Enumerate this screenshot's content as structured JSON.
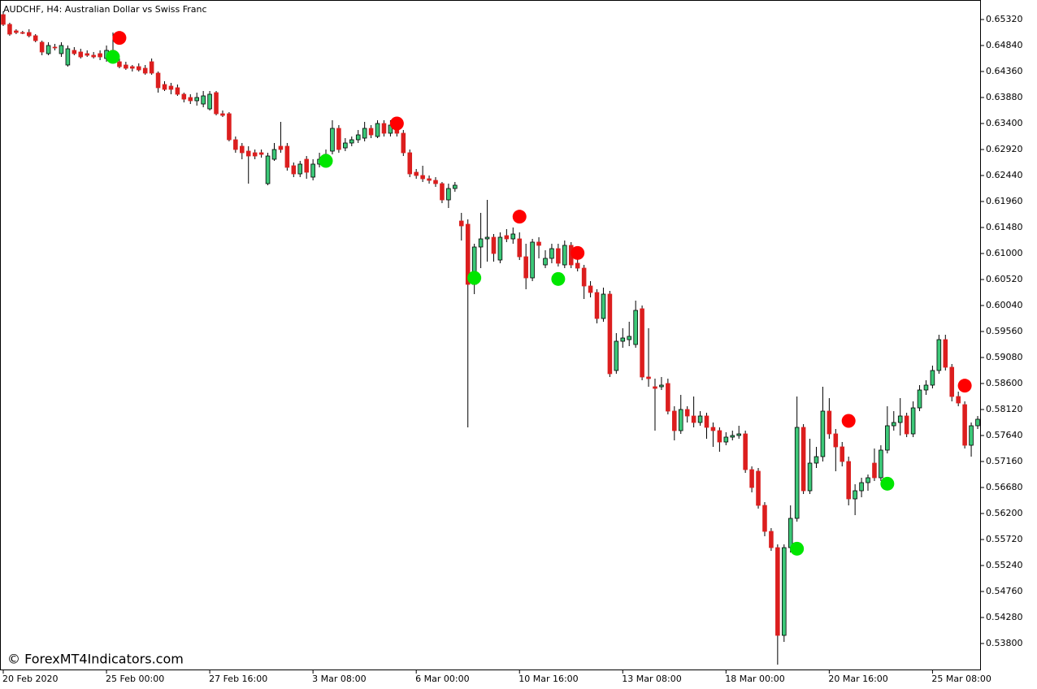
{
  "chart_data": {
    "type": "candlestick",
    "title": "AUDCHF, H4:  Australian Dollar vs Swiss Franc",
    "watermark": "© ForexMT4Indicators.com",
    "up_color": "#3cc878",
    "down_color": "#dc1e1e",
    "wick_color": "#000000",
    "categories": [
      "20 Feb 2020",
      null,
      null,
      null,
      null,
      null,
      null,
      null,
      null,
      null,
      null,
      null,
      null,
      null,
      null,
      null,
      "25 Feb 00:00",
      null,
      null,
      null,
      null,
      null,
      null,
      null,
      null,
      null,
      null,
      null,
      null,
      null,
      null,
      null,
      "27 Feb 16:00",
      null,
      null,
      null,
      null,
      null,
      null,
      null,
      null,
      null,
      null,
      null,
      null,
      null,
      null,
      null,
      "3 Mar 08:00",
      null,
      null,
      null,
      null,
      null,
      null,
      null,
      null,
      null,
      null,
      null,
      null,
      null,
      null,
      null,
      "6 Mar 00:00",
      null,
      null,
      null,
      null,
      null,
      null,
      null,
      null,
      null,
      null,
      null,
      null,
      null,
      null,
      null,
      "10 Mar 16:00",
      null,
      null,
      null,
      null,
      null,
      null,
      null,
      null,
      null,
      null,
      null,
      null,
      null,
      null,
      null,
      "13 Mar 08:00",
      null,
      null,
      null,
      null,
      null,
      null,
      null,
      null,
      null,
      null,
      null,
      null,
      null,
      null,
      null,
      "18 Mar 00:00",
      null,
      null,
      null,
      null,
      null,
      null,
      null,
      null,
      null,
      null,
      null,
      null,
      null,
      null,
      null,
      "20 Mar 16:00",
      null,
      null,
      null,
      null,
      null,
      null,
      null,
      null,
      null,
      null,
      null,
      null,
      null,
      null,
      null,
      "25 Mar 08:00",
      null,
      null,
      null,
      null,
      null,
      null,
      null
    ],
    "open": [
      0.6541,
      0.6523,
      0.6511,
      0.6508,
      0.6508,
      0.6502,
      0.649,
      0.6469,
      0.6481,
      0.6469,
      0.6448,
      0.6475,
      0.6472,
      0.6469,
      0.6466,
      0.6469,
      0.646,
      0.6475,
      0.6454,
      0.6448,
      0.6445,
      0.6445,
      0.6442,
      0.6454,
      0.6433,
      0.6412,
      0.6409,
      0.6406,
      0.6394,
      0.6388,
      0.6382,
      0.6376,
      0.6367,
      0.6397,
      0.6358,
      0.6358,
      0.631,
      0.6298,
      0.6289,
      0.6286,
      0.6286,
      0.6229,
      0.6274,
      0.6298,
      0.6298,
      0.6262,
      0.6247,
      0.6274,
      0.6241,
      0.6265,
      0.6274,
      0.6289,
      0.6331,
      0.6295,
      0.6304,
      0.631,
      0.6313,
      0.6331,
      0.6316,
      0.634,
      0.6322,
      0.6337,
      0.6322,
      0.6286,
      0.625,
      0.6244,
      0.6238,
      0.6235,
      0.6229,
      0.6199,
      0.622,
      0.616,
      0.6154,
      0.6043,
      0.6112,
      0.6127,
      0.613,
      0.6088,
      0.6133,
      0.6127,
      0.6127,
      0.6094,
      0.6055,
      0.6121,
      0.6079,
      0.6091,
      0.6109,
      0.6079,
      0.6115,
      0.6082,
      0.6073,
      0.604,
      0.6028,
      0.598,
      0.6025,
      0.5884,
      0.5938,
      0.5941,
      0.5932,
      0.5998,
      0.5872,
      0.5854,
      0.5854,
      0.586,
      0.5809,
      0.5773,
      0.5812,
      0.58,
      0.5788,
      0.58,
      0.5779,
      0.5773,
      0.5752,
      0.5761,
      0.5764,
      0.5767,
      0.5701,
      0.5698,
      0.5635,
      0.5587,
      0.5557,
      0.5395,
      0.5557,
      0.5611,
      0.5779,
      0.5662,
      0.5713,
      0.5725,
      0.5809,
      0.5767,
      0.5743,
      0.5716,
      0.5647,
      0.5662,
      0.5677,
      0.5713,
      0.5686,
      0.5737,
      0.5782,
      0.5788,
      0.58,
      0.5767,
      0.5815,
      0.5848,
      0.5857,
      0.5884,
      0.5941,
      0.589,
      0.5836,
      0.5821,
      0.5746,
      0.5782
    ],
    "high": [
      0.6547,
      0.6526,
      0.6514,
      0.6511,
      0.6514,
      0.6505,
      0.6493,
      0.649,
      0.6487,
      0.649,
      0.6484,
      0.6481,
      0.6478,
      0.6475,
      0.6472,
      0.6475,
      0.6484,
      0.6508,
      0.646,
      0.6454,
      0.6448,
      0.6451,
      0.6448,
      0.646,
      0.6436,
      0.6418,
      0.6415,
      0.6412,
      0.6397,
      0.6394,
      0.6397,
      0.64,
      0.64,
      0.64,
      0.6364,
      0.6361,
      0.6316,
      0.6304,
      0.6298,
      0.6292,
      0.6292,
      0.6286,
      0.6304,
      0.6343,
      0.6304,
      0.6268,
      0.6271,
      0.628,
      0.6274,
      0.6286,
      0.6292,
      0.6346,
      0.6337,
      0.6313,
      0.6316,
      0.6328,
      0.6343,
      0.6337,
      0.6346,
      0.6346,
      0.6346,
      0.6343,
      0.6328,
      0.6292,
      0.6256,
      0.6262,
      0.6244,
      0.6241,
      0.6232,
      0.6229,
      0.6232,
      0.6175,
      0.6163,
      0.6118,
      0.6175,
      0.6199,
      0.6136,
      0.6139,
      0.6145,
      0.6148,
      0.6139,
      0.6118,
      0.6127,
      0.613,
      0.6106,
      0.6118,
      0.6118,
      0.6124,
      0.6121,
      0.6091,
      0.6079,
      0.6049,
      0.6034,
      0.6037,
      0.6031,
      0.5953,
      0.5962,
      0.5974,
      0.6013,
      0.6004,
      0.5962,
      0.5869,
      0.5872,
      0.5869,
      0.5818,
      0.5839,
      0.5818,
      0.5836,
      0.5809,
      0.5806,
      0.5788,
      0.5779,
      0.577,
      0.5773,
      0.5782,
      0.5773,
      0.5707,
      0.5704,
      0.5641,
      0.5593,
      0.5563,
      0.5563,
      0.5635,
      0.5836,
      0.5785,
      0.5758,
      0.5743,
      0.5854,
      0.5833,
      0.5776,
      0.5752,
      0.5725,
      0.5674,
      0.5686,
      0.5692,
      0.574,
      0.5746,
      0.5818,
      0.5809,
      0.5833,
      0.5806,
      0.5827,
      0.5857,
      0.5866,
      0.5893,
      0.595,
      0.595,
      0.5896,
      0.5845,
      0.5827,
      0.5788,
      0.58
    ],
    "low": [
      0.652,
      0.6502,
      0.6505,
      0.6505,
      0.6499,
      0.649,
      0.6466,
      0.6466,
      0.6475,
      0.6463,
      0.6445,
      0.6466,
      0.646,
      0.6463,
      0.646,
      0.6457,
      0.6454,
      0.6451,
      0.6442,
      0.6439,
      0.6436,
      0.6436,
      0.643,
      0.643,
      0.6397,
      0.64,
      0.6394,
      0.6391,
      0.6379,
      0.6376,
      0.6373,
      0.637,
      0.6364,
      0.6355,
      0.6352,
      0.6307,
      0.6286,
      0.6274,
      0.6229,
      0.6274,
      0.6277,
      0.6226,
      0.6271,
      0.6286,
      0.6253,
      0.6241,
      0.6241,
      0.6238,
      0.6235,
      0.6259,
      0.6268,
      0.6283,
      0.6286,
      0.6289,
      0.6298,
      0.6304,
      0.6307,
      0.6313,
      0.6313,
      0.6316,
      0.6316,
      0.6316,
      0.628,
      0.6241,
      0.6238,
      0.6232,
      0.6229,
      0.6223,
      0.6193,
      0.6184,
      0.6214,
      0.6124,
      0.5779,
      0.6025,
      0.6073,
      0.6085,
      0.6085,
      0.6082,
      0.6121,
      0.6118,
      0.6088,
      0.6034,
      0.6049,
      0.6091,
      0.6073,
      0.6082,
      0.6076,
      0.6073,
      0.6073,
      0.6067,
      0.6016,
      0.6019,
      0.5971,
      0.5974,
      0.5872,
      0.5878,
      0.5926,
      0.5929,
      0.5926,
      0.5866,
      0.5854,
      0.5773,
      0.5848,
      0.5803,
      0.5755,
      0.5767,
      0.5788,
      0.5779,
      0.5782,
      0.5758,
      0.5743,
      0.5734,
      0.5746,
      0.5755,
      0.5758,
      0.5695,
      0.5659,
      0.5629,
      0.5578,
      0.5551,
      0.5341,
      0.5383,
      0.5548,
      0.5605,
      0.5656,
      0.5656,
      0.5704,
      0.5716,
      0.5758,
      0.5698,
      0.5707,
      0.5635,
      0.5617,
      0.565,
      0.5662,
      0.568,
      0.568,
      0.5731,
      0.5773,
      0.5764,
      0.5761,
      0.5761,
      0.5809,
      0.5839,
      0.5851,
      0.5878,
      0.5884,
      0.5827,
      0.5818,
      0.574,
      0.5725,
      0.5776
    ],
    "close": [
      0.6523,
      0.6505,
      0.6508,
      0.6507,
      0.6502,
      0.6493,
      0.6472,
      0.6484,
      0.648,
      0.6484,
      0.6478,
      0.6469,
      0.6463,
      0.6466,
      0.6463,
      0.6463,
      0.6475,
      0.6457,
      0.6445,
      0.6442,
      0.6442,
      0.6439,
      0.6433,
      0.6433,
      0.6406,
      0.6403,
      0.6403,
      0.6394,
      0.6385,
      0.6382,
      0.6388,
      0.6391,
      0.6394,
      0.6358,
      0.6355,
      0.631,
      0.6292,
      0.6286,
      0.628,
      0.628,
      0.6283,
      0.628,
      0.6292,
      0.6292,
      0.6259,
      0.6247,
      0.6265,
      0.625,
      0.6265,
      0.6274,
      0.6283,
      0.6331,
      0.6292,
      0.6304,
      0.631,
      0.6319,
      0.6331,
      0.6319,
      0.634,
      0.6322,
      0.6337,
      0.6322,
      0.6286,
      0.6247,
      0.6244,
      0.6238,
      0.6235,
      0.6229,
      0.6199,
      0.622,
      0.6226,
      0.6151,
      0.6043,
      0.6112,
      0.6127,
      0.613,
      0.61,
      0.613,
      0.6127,
      0.6136,
      0.6094,
      0.6055,
      0.6121,
      0.6115,
      0.6091,
      0.6109,
      0.6082,
      0.6115,
      0.6079,
      0.6073,
      0.604,
      0.6028,
      0.598,
      0.6025,
      0.5878,
      0.5938,
      0.5944,
      0.5947,
      0.5995,
      0.5872,
      0.5869,
      0.5851,
      0.5857,
      0.5809,
      0.5773,
      0.5812,
      0.58,
      0.5788,
      0.58,
      0.5779,
      0.5773,
      0.5752,
      0.5761,
      0.5764,
      0.5767,
      0.5701,
      0.5668,
      0.5635,
      0.5587,
      0.5557,
      0.5395,
      0.5557,
      0.5611,
      0.5779,
      0.5662,
      0.5713,
      0.5725,
      0.5809,
      0.5767,
      0.5743,
      0.5716,
      0.5647,
      0.5662,
      0.5677,
      0.5686,
      0.5686,
      0.5737,
      0.5782,
      0.5788,
      0.58,
      0.5767,
      0.5815,
      0.5848,
      0.5857,
      0.5884,
      0.5941,
      0.589,
      0.5836,
      0.5824,
      0.5746,
      0.5782,
      0.5794
    ],
    "sell_signals": {
      "color": "#ff0000",
      "x": [
        18,
        61,
        80,
        89,
        131,
        149
      ],
      "values": [
        0.6498,
        0.634,
        0.6168,
        0.6101,
        0.5791,
        0.5856
      ]
    },
    "buy_signals": {
      "color": "#00e600",
      "x": [
        17,
        50,
        73,
        86,
        123,
        137
      ],
      "values": [
        0.6463,
        0.6271,
        0.6055,
        0.6053,
        0.5555,
        0.5675
      ]
    },
    "ylim": [
      0.5332,
      0.6568
    ],
    "yticks": [
      {
        "value": 0.6532,
        "label": "0.65320"
      },
      {
        "value": 0.6484,
        "label": "0.64840"
      },
      {
        "value": 0.6436,
        "label": "0.64360"
      },
      {
        "value": 0.6388,
        "label": "0.63880"
      },
      {
        "value": 0.634,
        "label": "0.63400"
      },
      {
        "value": 0.6292,
        "label": "0.62920"
      },
      {
        "value": 0.6244,
        "label": "0.62440"
      },
      {
        "value": 0.6196,
        "label": "0.61960"
      },
      {
        "value": 0.6148,
        "label": "0.61480"
      },
      {
        "value": 0.61,
        "label": "0.61000"
      },
      {
        "value": 0.6052,
        "label": "0.60520"
      },
      {
        "value": 0.6004,
        "label": "0.60040"
      },
      {
        "value": 0.5956,
        "label": "0.59560"
      },
      {
        "value": 0.5908,
        "label": "0.59080"
      },
      {
        "value": 0.586,
        "label": "0.58600"
      },
      {
        "value": 0.5812,
        "label": "0.58120"
      },
      {
        "value": 0.5764,
        "label": "0.57640"
      },
      {
        "value": 0.5716,
        "label": "0.57160"
      },
      {
        "value": 0.5668,
        "label": "0.56680"
      },
      {
        "value": 0.562,
        "label": "0.56200"
      },
      {
        "value": 0.5572,
        "label": "0.55720"
      },
      {
        "value": 0.5524,
        "label": "0.55240"
      },
      {
        "value": 0.5476,
        "label": "0.54760"
      },
      {
        "value": 0.5428,
        "label": "0.54280"
      },
      {
        "value": 0.538,
        "label": "0.53800"
      }
    ],
    "grid": false
  }
}
